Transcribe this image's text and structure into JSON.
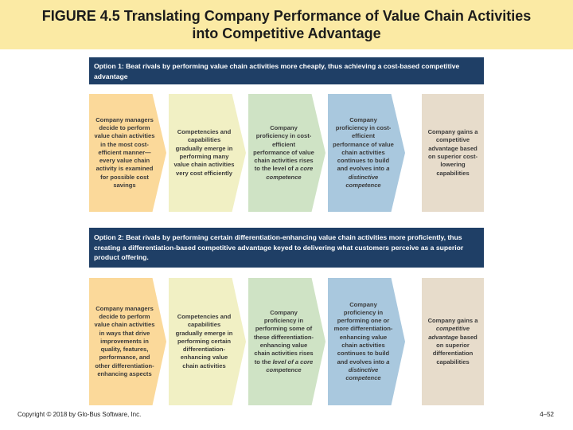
{
  "title": {
    "line1": "FIGURE 4.5 Translating Company Performance of Value Chain Activities",
    "line2": "into Competitive Advantage"
  },
  "option1": {
    "header": "Option 1: Beat rivals by performing value chain activities more cheaply, thus achieving a cost-based competitive advantage",
    "steps": [
      {
        "text": "Company managers decide to perform value chain activities in the most cost-efficient manner—every value chain activity is examined for possible cost savings"
      },
      {
        "text": "Competencies and capabilities gradually emerge in performing many value chain activities very cost efficiently"
      },
      {
        "text_pre": "Company proficiency in cost-efficient performance of value chain activities rises to the level of ",
        "text_em": "a core competence"
      },
      {
        "text_pre": "Company proficiency in cost-efficient performance of value chain activities continues to build and evolves into ",
        "text_em": "a distinctive competence"
      },
      {
        "text": "Company gains a competitive advantage based on superior cost-lowering capabilities"
      }
    ]
  },
  "option2": {
    "header": "Option 2: Beat rivals by performing certain differentiation-enhancing value chain activities more proficiently, thus creating a differentiation-based competitive advantage keyed to delivering what customers perceive as a superior product offering.",
    "steps": [
      {
        "text": "Company managers decide to perform value chain activities in ways that drive improvements in quality, features, performance, and other differentiation-enhancing aspects"
      },
      {
        "text": "Competencies and capabilities gradually emerge in performing certain differentiation-enhancing value chain activities"
      },
      {
        "text_pre": "Company proficiency in performing some of these differentiation-enhancing value chain activities rises to the ",
        "text_em": "level of a core competence"
      },
      {
        "text_pre": "Company proficiency in performing one or more differentiation-enhancing value chain activities continues to build and evolves into ",
        "text_em": "a distinctive competence"
      },
      {
        "text_pre": "Company gains a ",
        "text_em": "competitive advantage",
        "text_post": " based on superior differentiation capabilities"
      }
    ]
  },
  "footer": {
    "copyright": "Copyright © 2018 by Glo-Bus Software, Inc.",
    "page": "4–52"
  }
}
